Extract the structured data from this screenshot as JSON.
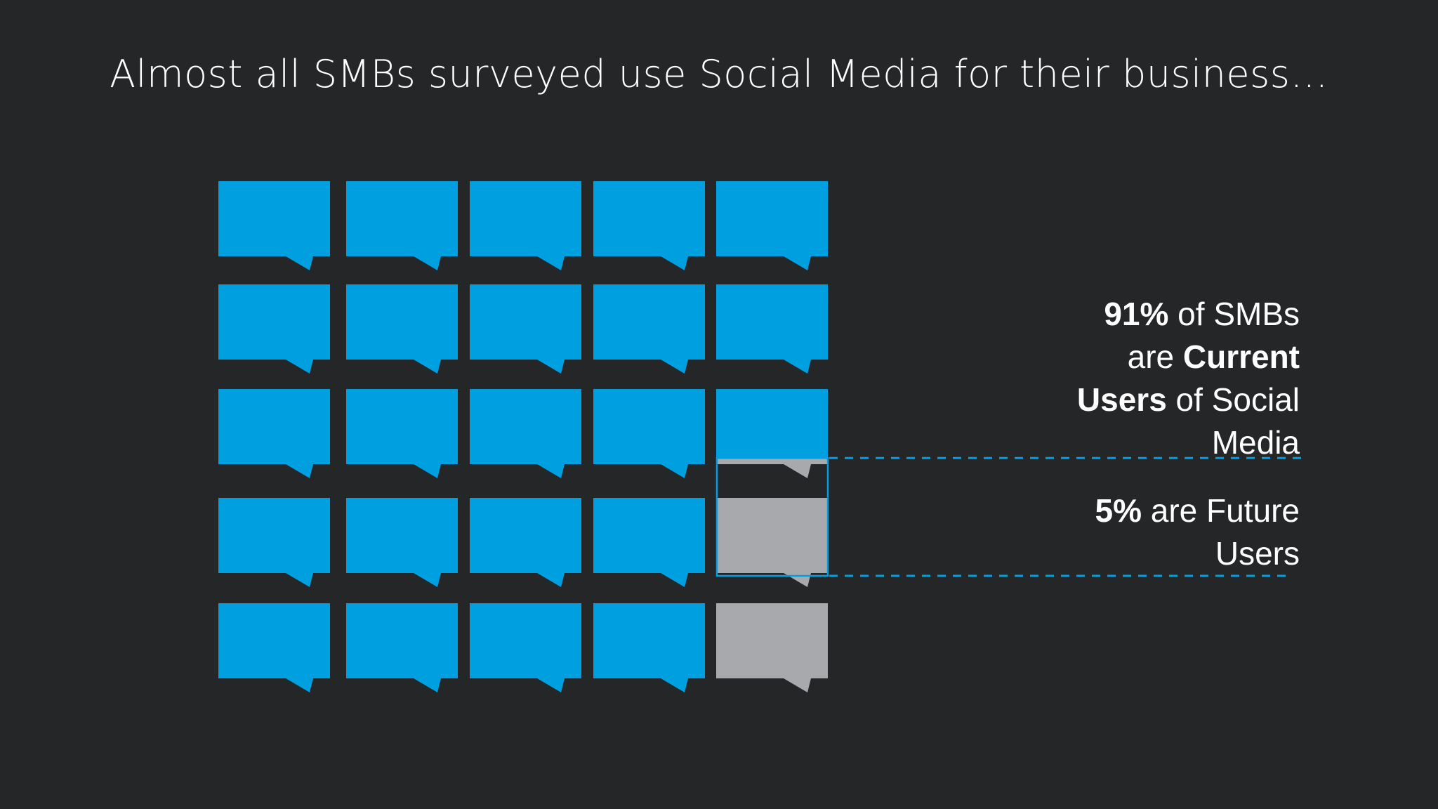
{
  "title": "Almost all SMBs surveyed use Social Media for their business…",
  "colors": {
    "background": "#252628",
    "current": "#00a0e0",
    "future": "#a7a9ad",
    "highlight_outline": "#00a0e0",
    "text": "#ffffff"
  },
  "chart_data": {
    "type": "waffle",
    "rows": 5,
    "columns": 5,
    "total_units": 100,
    "units_per_icon": 4,
    "icon": "speech-bubble-icon",
    "series": [
      {
        "name": "Current Users",
        "percent": 91
      },
      {
        "name": "Future Users",
        "percent": 5
      }
    ]
  },
  "annotations": {
    "current": {
      "value": "91%",
      "t1": " of SMBs",
      "t2": "are ",
      "bold2": "Current",
      "bold3": "Users",
      "t3": " of Social",
      "t4": "Media"
    },
    "future": {
      "value": "5%",
      "t1": " are Future",
      "t2": "Users"
    }
  }
}
